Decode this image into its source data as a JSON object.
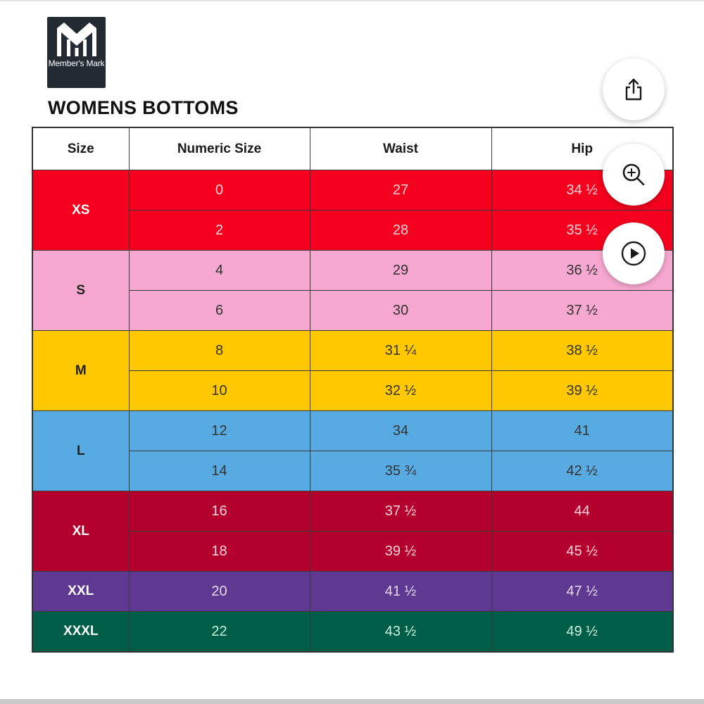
{
  "brand": {
    "logo_text": "Member's Mark",
    "logo_bg": "#232a31"
  },
  "title": "WOMENS BOTTOMS",
  "table": {
    "headers": [
      "Size",
      "Numeric Size",
      "Waist",
      "Hip"
    ],
    "groups": [
      {
        "size": "XS",
        "color": "#f5001e",
        "text_color": "#ffffff",
        "values_color": "#ffd2d6",
        "rows": [
          {
            "numeric": "0",
            "waist": "27",
            "hip": "34 ½"
          },
          {
            "numeric": "2",
            "waist": "28",
            "hip": "35 ½"
          }
        ]
      },
      {
        "size": "S",
        "color": "#f7a8d0",
        "text_color": "#222222",
        "values_color": "#333333",
        "rows": [
          {
            "numeric": "4",
            "waist": "29",
            "hip": "36 ½"
          },
          {
            "numeric": "6",
            "waist": "30",
            "hip": "37 ½"
          }
        ]
      },
      {
        "size": "M",
        "color": "#ffc800",
        "text_color": "#222222",
        "values_color": "#333333",
        "rows": [
          {
            "numeric": "8",
            "waist": "31 ¼",
            "hip": "38 ½"
          },
          {
            "numeric": "10",
            "waist": "32 ½",
            "hip": "39 ½"
          }
        ]
      },
      {
        "size": "L",
        "color": "#58abe2",
        "text_color": "#222222",
        "values_color": "#333333",
        "rows": [
          {
            "numeric": "12",
            "waist": "34",
            "hip": "41"
          },
          {
            "numeric": "14",
            "waist": "35 ¾",
            "hip": "42 ½"
          }
        ]
      },
      {
        "size": "XL",
        "color": "#b4002d",
        "text_color": "#ffffff",
        "values_color": "#ffd2dc",
        "rows": [
          {
            "numeric": "16",
            "waist": "37 ½",
            "hip": "44"
          },
          {
            "numeric": "18",
            "waist": "39 ½",
            "hip": "45 ½"
          }
        ]
      },
      {
        "size": "XXL",
        "color": "#5e3891",
        "text_color": "#ffffff",
        "values_color": "#e6daf5",
        "rows": [
          {
            "numeric": "20",
            "waist": "41 ½",
            "hip": "47 ½"
          }
        ]
      },
      {
        "size": "XXXL",
        "color": "#005e48",
        "text_color": "#ffffff",
        "values_color": "#c9f1dd",
        "rows": [
          {
            "numeric": "22",
            "waist": "43 ½",
            "hip": "49 ½"
          }
        ]
      }
    ]
  },
  "actions": [
    {
      "name": "share-button",
      "icon": "share-icon"
    },
    {
      "name": "zoom-button",
      "icon": "zoom-in-icon"
    },
    {
      "name": "play-button",
      "icon": "play-icon"
    }
  ]
}
